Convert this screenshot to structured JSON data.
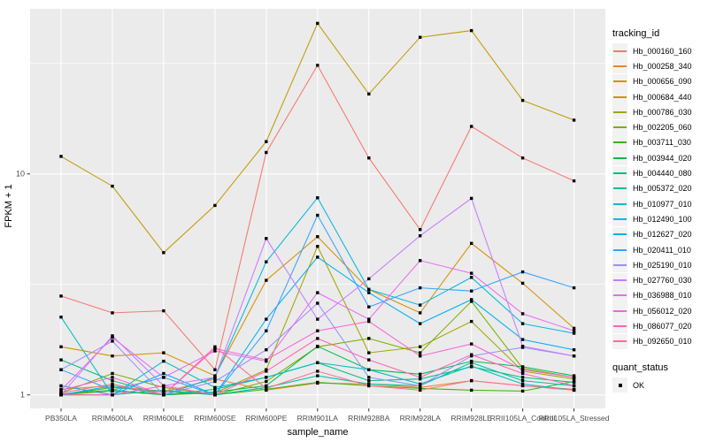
{
  "chart_data": {
    "type": "line",
    "xlabel": "sample_name",
    "ylabel": "FPKM + 1",
    "y_scale": "log10",
    "y_ticks": [
      1,
      10
    ],
    "y_tick_labels": [
      "1",
      "10"
    ],
    "y_minor_breaks": [
      3.162,
      31.62
    ],
    "ylim": [
      0.87,
      55.6
    ],
    "legend_title": "tracking_id",
    "legend_position": "right",
    "grid": true,
    "point_marker": {
      "shape": "filled-square",
      "color": "#000000"
    },
    "quant_legend": {
      "title": "quant_status",
      "items": [
        "OK"
      ]
    },
    "categories": [
      "PB350LA",
      "RRIM600LA",
      "RRIM600LE",
      "RRIM600SE",
      "RRIM600PE",
      "RRIM901LA",
      "RRIM928BA",
      "RRIM928LA",
      "RRIM928LE",
      "RRII105LA_Control",
      "RRII105LA_Stressed"
    ],
    "series": [
      {
        "name": "Hb_000160_160",
        "color": "#F8766D",
        "values": [
          2.8,
          2.35,
          2.4,
          1.3,
          12.5,
          31.0,
          11.8,
          5.6,
          16.4,
          11.8,
          9.3
        ]
      },
      {
        "name": "Hb_000258_340",
        "color": "#EA8331",
        "values": [
          1.06,
          1.1,
          1.03,
          1.18,
          1.05,
          1.13,
          1.12,
          1.08,
          1.16,
          1.1,
          1.06
        ]
      },
      {
        "name": "Hb_000656_090",
        "color": "#D89000",
        "values": [
          1.65,
          1.5,
          1.55,
          1.22,
          3.3,
          5.2,
          3.0,
          2.35,
          4.85,
          3.2,
          2.0
        ]
      },
      {
        "name": "Hb_000684_440",
        "color": "#C09B00",
        "values": [
          12.0,
          8.8,
          4.4,
          7.2,
          14.0,
          48.0,
          23.0,
          41.5,
          44.5,
          21.5,
          17.5
        ]
      },
      {
        "name": "Hb_000786_030",
        "color": "#A3A500",
        "values": [
          1.0,
          1.04,
          1.0,
          1.02,
          1.3,
          4.7,
          1.55,
          1.65,
          2.15,
          1.28,
          1.18
        ]
      },
      {
        "name": "Hb_002205_060",
        "color": "#7CAE00",
        "values": [
          1.02,
          1.25,
          1.08,
          1.0,
          1.15,
          1.65,
          1.8,
          1.55,
          2.65,
          1.32,
          1.2
        ]
      },
      {
        "name": "Hb_003711_030",
        "color": "#39B600",
        "values": [
          1.0,
          1.08,
          1.04,
          1.0,
          1.06,
          1.14,
          1.1,
          1.07,
          1.05,
          1.04,
          1.15
        ]
      },
      {
        "name": "Hb_003944_020",
        "color": "#00BB4E",
        "values": [
          1.01,
          1.05,
          1.0,
          1.03,
          1.1,
          1.66,
          1.3,
          1.24,
          1.42,
          1.34,
          1.22
        ]
      },
      {
        "name": "Hb_004440_080",
        "color": "#00BF7D",
        "values": [
          1.44,
          1.16,
          1.0,
          1.06,
          1.2,
          1.4,
          1.16,
          1.18,
          1.34,
          1.2,
          1.14
        ]
      },
      {
        "name": "Hb_005372_020",
        "color": "#00C1A3",
        "values": [
          1.0,
          1.0,
          1.05,
          1.0,
          1.08,
          1.22,
          1.12,
          1.1,
          1.4,
          1.16,
          1.1
        ]
      },
      {
        "name": "Hb_010977_010",
        "color": "#00BFC4",
        "values": [
          2.25,
          1.0,
          1.42,
          1.08,
          1.2,
          1.4,
          1.3,
          1.12,
          1.35,
          1.12,
          1.05
        ]
      },
      {
        "name": "Hb_012490_100",
        "color": "#00BAE0",
        "values": [
          1.0,
          1.1,
          1.0,
          1.2,
          4.0,
          7.8,
          3.0,
          2.55,
          3.4,
          2.1,
          1.9
        ]
      },
      {
        "name": "Hb_012627_020",
        "color": "#00B0F6",
        "values": [
          1.1,
          1.0,
          1.25,
          1.0,
          2.2,
          4.2,
          2.9,
          2.1,
          2.7,
          1.78,
          1.6
        ]
      },
      {
        "name": "Hb_020411_010",
        "color": "#35A2FF",
        "values": [
          1.3,
          1.05,
          1.2,
          1.0,
          1.95,
          6.5,
          2.5,
          3.05,
          2.95,
          3.6,
          3.05
        ]
      },
      {
        "name": "Hb_025190_010",
        "color": "#9590FF",
        "values": [
          1.3,
          1.75,
          1.0,
          1.15,
          1.6,
          2.6,
          1.2,
          1.1,
          1.5,
          1.64,
          1.5
        ]
      },
      {
        "name": "Hb_027760_030",
        "color": "#C77CFF",
        "values": [
          1.0,
          1.85,
          1.1,
          1.2,
          5.1,
          2.2,
          3.35,
          5.25,
          7.75,
          1.66,
          1.5
        ]
      },
      {
        "name": "Hb_036988_010",
        "color": "#E76BF3",
        "values": [
          1.05,
          1.82,
          1.2,
          1.58,
          1.42,
          2.9,
          2.2,
          4.05,
          3.55,
          2.33,
          1.95
        ]
      },
      {
        "name": "Hb_056012_020",
        "color": "#FA62DB",
        "values": [
          1.05,
          1.2,
          1.0,
          1.62,
          1.44,
          1.95,
          2.15,
          1.5,
          1.7,
          1.3,
          1.2
        ]
      },
      {
        "name": "Hb_086077_020",
        "color": "#FF62BC",
        "values": [
          1.0,
          1.0,
          1.1,
          1.0,
          1.28,
          1.8,
          1.44,
          1.2,
          1.52,
          1.25,
          1.1
        ]
      },
      {
        "name": "Hb_092650_010",
        "color": "#FF6A98",
        "values": [
          1.02,
          1.12,
          1.0,
          1.65,
          1.07,
          1.28,
          1.1,
          1.05,
          1.16,
          1.1,
          1.05
        ]
      }
    ]
  },
  "style": {
    "panel_bg": "#EBEBEB",
    "grid_color": "#FFFFFF",
    "axis_text_color": "#4D4D4D",
    "tick_mark_color": "#333333",
    "title_color": "#000000",
    "legend_key_bg": "#F2F2F2",
    "page_bg": "#FFFFFF"
  }
}
